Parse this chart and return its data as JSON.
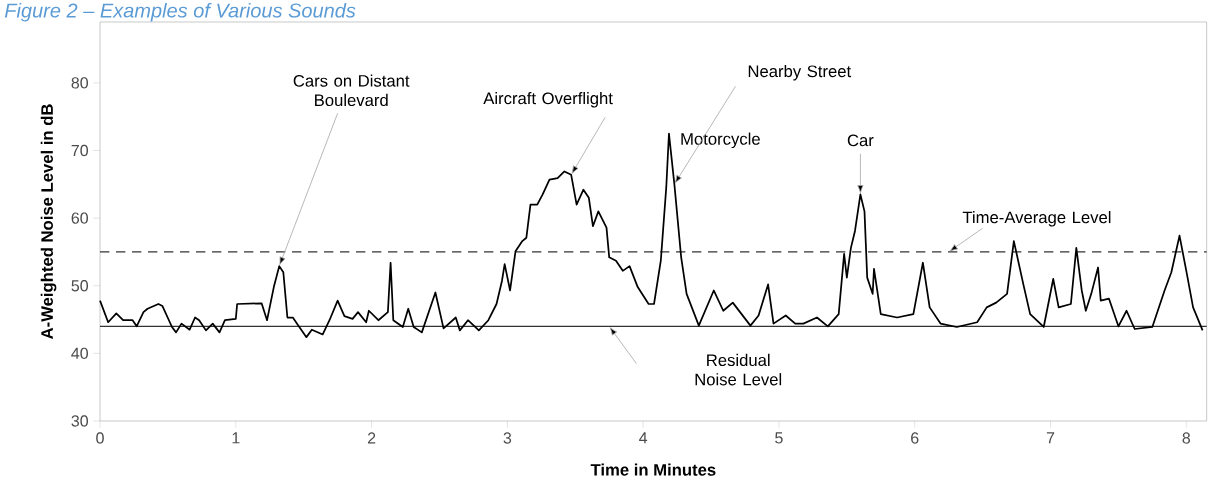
{
  "chart_data": {
    "type": "line",
    "title": "Figure 2 – Examples of Various Sounds",
    "xlabel": "Time in Minutes",
    "ylabel": "A-Weighted Noise Level in dB",
    "x": [
      0,
      0.06,
      0.12,
      0.17,
      0.24,
      0.27,
      0.32,
      0.35,
      0.43,
      0.46,
      0.53,
      0.56,
      0.6,
      0.66,
      0.7,
      0.73,
      0.78,
      0.83,
      0.88,
      0.92,
      1.0,
      1.01,
      1.19,
      1.23,
      1.28,
      1.32,
      1.35,
      1.38,
      1.42,
      1.45,
      1.52,
      1.56,
      1.64,
      1.69,
      1.75,
      1.8,
      1.86,
      1.9,
      1.96,
      1.98,
      2.05,
      2.12,
      2.14,
      2.16,
      2.23,
      2.27,
      2.31,
      2.37,
      2.47,
      2.53,
      2.62,
      2.65,
      2.71,
      2.79,
      2.86,
      2.92,
      2.96,
      2.98,
      3.02,
      3.06,
      3.11,
      3.14,
      3.17,
      3.22,
      3.26,
      3.31,
      3.37,
      3.42,
      3.47,
      3.51,
      3.56,
      3.6,
      3.63,
      3.67,
      3.73,
      3.75,
      3.8,
      3.85,
      3.9,
      3.96,
      4.04,
      4.08,
      4.13,
      4.17,
      4.19,
      4.23,
      4.28,
      4.32,
      4.41,
      4.52,
      4.59,
      4.66,
      4.79,
      4.85,
      4.92,
      4.96,
      5.05,
      5.12,
      5.18,
      5.28,
      5.36,
      5.44,
      5.48,
      5.5,
      5.53,
      5.56,
      5.6,
      5.63,
      5.65,
      5.69,
      5.7,
      5.75,
      5.87,
      5.99,
      6.06,
      6.11,
      6.19,
      6.31,
      6.46,
      6.53,
      6.6,
      6.68,
      6.73,
      6.8,
      6.85,
      6.95,
      7.02,
      7.06,
      7.15,
      7.19,
      7.23,
      7.26,
      7.3,
      7.35,
      7.37,
      7.43,
      7.5,
      7.56,
      7.62,
      7.75,
      7.84,
      7.89,
      7.95,
      8.0,
      8.05,
      8.12
    ],
    "series": [
      {
        "color": "#000000",
        "values": [
          47.8,
          44.6,
          45.9,
          44.9,
          44.9,
          44.0,
          46.1,
          46.6,
          47.3,
          47.0,
          43.9,
          43.1,
          44.4,
          43.5,
          45.3,
          44.9,
          43.4,
          44.4,
          43.1,
          44.9,
          45.1,
          47.3,
          47.4,
          44.9,
          49.8,
          52.9,
          52.0,
          45.3,
          45.3,
          44.4,
          42.4,
          43.5,
          42.8,
          44.9,
          47.8,
          45.5,
          45.1,
          46.1,
          44.6,
          46.3,
          44.9,
          46.1,
          53.4,
          44.9,
          43.9,
          46.6,
          43.9,
          43.1,
          49.0,
          43.7,
          45.3,
          43.4,
          44.9,
          43.4,
          44.9,
          47.3,
          50.7,
          53.2,
          49.3,
          55.1,
          56.6,
          57.1,
          62.0,
          62.0,
          63.5,
          65.7,
          65.9,
          66.9,
          66.4,
          62.0,
          64.2,
          63.0,
          58.8,
          61.0,
          58.6,
          54.2,
          53.7,
          52.2,
          52.9,
          49.8,
          47.3,
          47.3,
          53.7,
          64.5,
          72.5,
          65.0,
          54.2,
          48.8,
          44.1,
          49.3,
          46.3,
          47.5,
          44.1,
          45.6,
          50.2,
          44.4,
          45.6,
          44.4,
          44.4,
          45.3,
          44.0,
          45.8,
          54.7,
          51.2,
          55.6,
          58.1,
          63.5,
          61.0,
          51.2,
          48.8,
          52.5,
          45.8,
          45.3,
          45.8,
          53.4,
          46.8,
          44.4,
          43.9,
          44.6,
          46.8,
          47.5,
          48.8,
          56.6,
          50.2,
          45.8,
          43.9,
          51.0,
          46.8,
          47.3,
          55.6,
          49.3,
          46.3,
          48.8,
          52.7,
          47.8,
          48.1,
          44.0,
          46.3,
          43.6,
          43.9,
          49.3,
          52.0,
          57.4,
          52.2,
          46.8,
          43.4
        ]
      }
    ],
    "xlim": [
      0,
      8.15
    ],
    "ylim": [
      30,
      89
    ],
    "xticks": [
      0,
      1,
      2,
      3,
      4,
      5,
      6,
      7,
      8
    ],
    "yticks": [
      30,
      40,
      50,
      60,
      70,
      80
    ],
    "ref_lines": [
      {
        "axis": "y",
        "value": 55,
        "label": "Time-Average Level",
        "line_style": "dashed",
        "color": "#333333"
      },
      {
        "axis": "y",
        "value": 44,
        "label": "Residual Noise Level",
        "line_style": "solid",
        "color": "#333333"
      }
    ],
    "annotations": [
      {
        "text": "Cars on Distant Boulevard",
        "x": 1.32,
        "y": 52.9
      },
      {
        "text": "Aircraft Overflight",
        "x": 3.47,
        "y": 66.4
      },
      {
        "text": "Motorcycle",
        "x": 4.19,
        "y": 72.5
      },
      {
        "text": "Nearby Street",
        "x": 4.23,
        "y": 65.0
      },
      {
        "text": "Car",
        "x": 5.6,
        "y": 63.5
      }
    ],
    "line_style": "solid"
  }
}
